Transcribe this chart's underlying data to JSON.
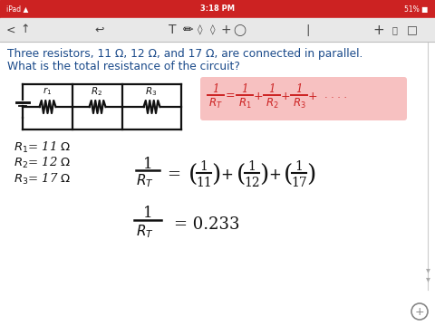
{
  "bg_color": "#ffffff",
  "status_bar_color": "#cc2222",
  "status_bar_text": "3:18 PM",
  "question_color": "#1a4a8a",
  "question_line1": "Three resistors, 11 Ω, 12 Ω, and 17 Ω, are connected in parallel.",
  "question_line2": "What is the total resistance of the circuit?",
  "dark_color": "#111111",
  "red_color": "#cc2222",
  "highlight_color": "#f4a0a0",
  "toolbar_bg": "#e8e8e8",
  "figsize": [
    4.8,
    3.6
  ],
  "dpi": 100
}
